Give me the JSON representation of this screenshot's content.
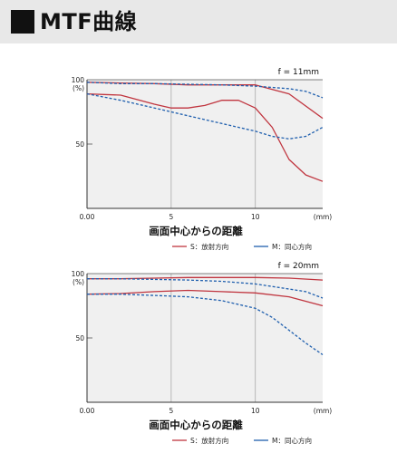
{
  "header": {
    "title": "MTF曲線"
  },
  "colors": {
    "sagittal": "#c0353f",
    "meridional": "#1f5fae",
    "grid": "#a9a9a9",
    "plot_bg": "#f0f0f0",
    "axis": "#333333"
  },
  "chart_data": [
    {
      "type": "line",
      "title": "f = 11mm",
      "xlabel": "画面中心からの距離",
      "x_unit": "(mm)",
      "y_unit": "(%)",
      "xlim": [
        0,
        14
      ],
      "ylim": [
        0,
        100
      ],
      "x_ticks": [
        "0.00",
        "5",
        "10"
      ],
      "y_ticks": [
        "100",
        "50"
      ],
      "legend": [
        "S：放射方向",
        "M：同心方向"
      ],
      "series": [
        {
          "name": "S：放射方向",
          "style": "solid",
          "color": "#c0353f",
          "x": [
            0,
            2,
            4,
            6,
            8,
            10,
            12,
            14
          ],
          "y": [
            98,
            97.5,
            97,
            96,
            96,
            96,
            89,
            70
          ]
        },
        {
          "name": "S：放射方向",
          "style": "solid",
          "color": "#c0353f",
          "x": [
            0,
            2,
            4,
            5,
            6,
            7,
            8,
            9,
            10,
            11,
            12,
            13,
            14
          ],
          "y": [
            89,
            88,
            81,
            78,
            78,
            80,
            84,
            84,
            78,
            63,
            38,
            26,
            21
          ]
        },
        {
          "name": "M：同心方向",
          "style": "dashed",
          "color": "#1f5fae",
          "x": [
            0,
            2,
            4,
            6,
            8,
            10,
            11,
            12,
            13,
            14
          ],
          "y": [
            98,
            97,
            97,
            96.5,
            96,
            95,
            94,
            93,
            91,
            86
          ]
        },
        {
          "name": "M：同心方向",
          "style": "dashed",
          "color": "#1f5fae",
          "x": [
            0,
            2,
            4,
            6,
            8,
            10,
            11,
            12,
            13,
            14
          ],
          "y": [
            89,
            84,
            78,
            72,
            66,
            60,
            56,
            54,
            56,
            63
          ]
        }
      ]
    },
    {
      "type": "line",
      "title": "f = 20mm",
      "xlabel": "画面中心からの距離",
      "x_unit": "(mm)",
      "y_unit": "(%)",
      "xlim": [
        0,
        14
      ],
      "ylim": [
        0,
        100
      ],
      "x_ticks": [
        "0.00",
        "5",
        "10"
      ],
      "y_ticks": [
        "100",
        "50"
      ],
      "legend": [
        "S：放射方向",
        "M：同心方向"
      ],
      "series": [
        {
          "name": "S：放射方向",
          "style": "solid",
          "color": "#c0353f",
          "x": [
            0,
            2,
            4,
            6,
            8,
            10,
            12,
            14
          ],
          "y": [
            96,
            96,
            96.5,
            97,
            97,
            97,
            96.5,
            95
          ]
        },
        {
          "name": "S：放射方向",
          "style": "solid",
          "color": "#c0353f",
          "x": [
            0,
            2,
            4,
            6,
            8,
            10,
            12,
            14
          ],
          "y": [
            84,
            84.5,
            86,
            87,
            86,
            85,
            82,
            75
          ]
        },
        {
          "name": "M：同心方向",
          "style": "dashed",
          "color": "#1f5fae",
          "x": [
            0,
            2,
            4,
            6,
            8,
            10,
            12,
            13,
            14
          ],
          "y": [
            96,
            96,
            95.5,
            95,
            94,
            92,
            88,
            86,
            81
          ]
        },
        {
          "name": "M：同心方向",
          "style": "dashed",
          "color": "#1f5fae",
          "x": [
            0,
            2,
            4,
            6,
            8,
            10,
            11,
            12,
            13,
            14
          ],
          "y": [
            84,
            84,
            83,
            82,
            79,
            73,
            66,
            56,
            46,
            37
          ]
        }
      ]
    }
  ]
}
